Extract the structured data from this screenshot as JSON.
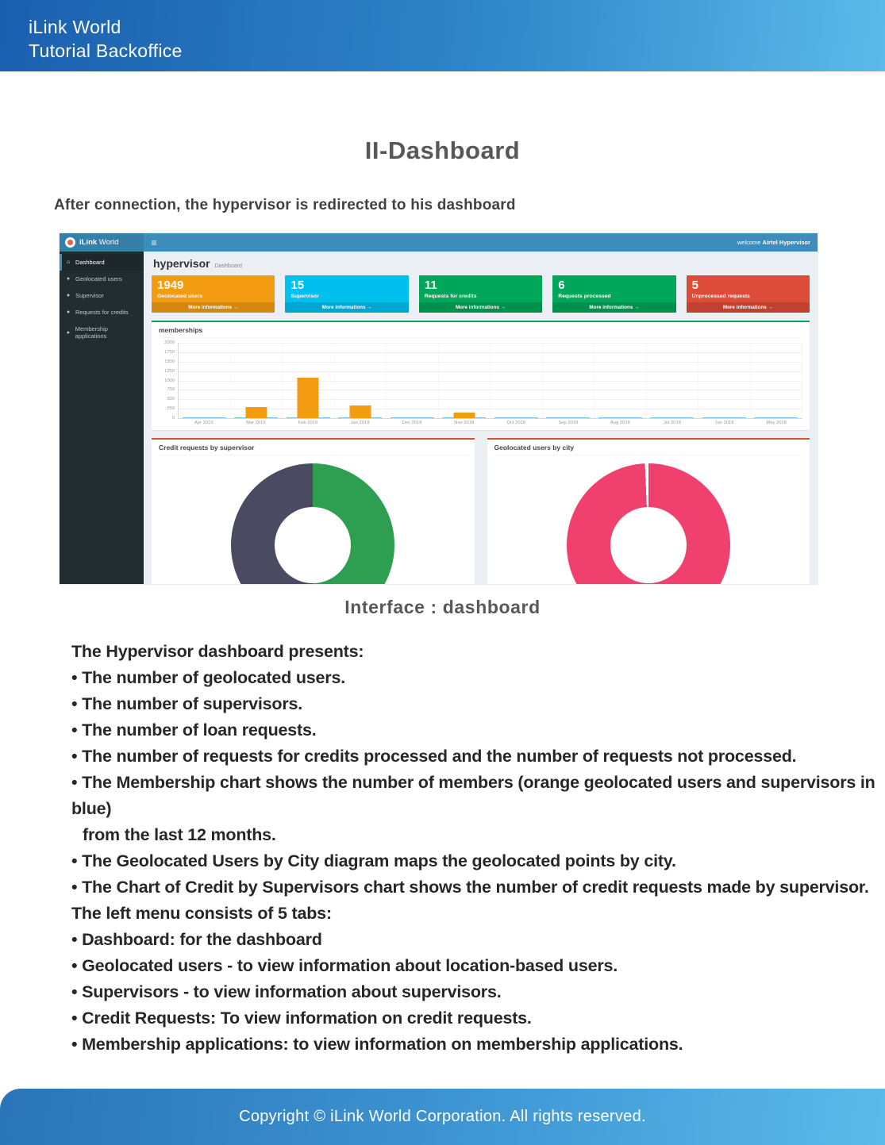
{
  "banner": {
    "line1": "iLink World",
    "line2": "Tutorial Backoffice"
  },
  "title": "II-Dashboard",
  "intro": "After connection, the hypervisor is redirected to his dashboard",
  "icons": {
    "hamburger-icon": "≡",
    "arrow-circle-icon": "→",
    "dashboard-icon": "⌂",
    "users-icon": "●",
    "supervisor-icon": "●",
    "credits-icon": "●",
    "membership-icon": "●"
  },
  "screenshot": {
    "topbar": {
      "brand_bold": "iLink",
      "brand_rest": " World",
      "welcome_prefix": "welcome ",
      "welcome_user": "Airtel Hypervisor"
    },
    "sidebar": {
      "items": [
        {
          "id": "dashboard",
          "label": "Dashboard",
          "icon": "dashboard-icon",
          "active": true
        },
        {
          "id": "geolocated-users",
          "label": "Geolocated users",
          "icon": "users-icon",
          "active": false
        },
        {
          "id": "supervisor",
          "label": "Supervisor",
          "icon": "supervisor-icon",
          "active": false
        },
        {
          "id": "requests-for-credits",
          "label": "Requests for credits",
          "icon": "credits-icon",
          "active": false
        },
        {
          "id": "membership-applications",
          "label": "Membership applications",
          "icon": "membership-icon",
          "active": false
        }
      ]
    },
    "page_header": {
      "title": "hypervisor",
      "subtitle": "Dashboard"
    },
    "stat_cards": [
      {
        "value": "1949",
        "label": "Geolocated users",
        "color": "#f39c12",
        "more": "More informations"
      },
      {
        "value": "15",
        "label": "Supervisor",
        "color": "#00c0ef",
        "more": "More informations"
      },
      {
        "value": "11",
        "label": "Requests for credits",
        "color": "#00a65a",
        "more": "More informations"
      },
      {
        "value": "6",
        "label": "Requests processed",
        "color": "#00a65a",
        "more": "More informations"
      },
      {
        "value": "5",
        "label": "Unprocessed requests",
        "color": "#dd4b39",
        "more": "More informations"
      }
    ]
  },
  "chart_data": [
    {
      "type": "bar",
      "title": "memberships",
      "categories": [
        "Apr 2019",
        "Mar 2019",
        "Feb 2019",
        "Jan 2019",
        "Dec 2018",
        "Nov 2018",
        "Oct 2018",
        "Sep 2018",
        "Aug 2018",
        "Jul 2018",
        "Jun 2018",
        "May 2018"
      ],
      "series": [
        {
          "name": "Geolocated users",
          "color": "#f39c12",
          "values": [
            0,
            300,
            1080,
            330,
            0,
            140,
            0,
            0,
            0,
            0,
            0,
            0
          ]
        },
        {
          "name": "Supervisors",
          "color": "#7cc2e8",
          "values": [
            15,
            15,
            20,
            15,
            15,
            15,
            15,
            15,
            15,
            15,
            15,
            15
          ]
        }
      ],
      "ylim": [
        0,
        2000
      ],
      "yticks": [
        "2000",
        "1750",
        "1500",
        "1250",
        "1000",
        "750",
        "500",
        "250",
        "0"
      ],
      "xlabel": "",
      "ylabel": ""
    },
    {
      "type": "doughnut",
      "title": "Credit requests by supervisor",
      "slices": [
        {
          "color": "#2e9e50",
          "value": 50
        },
        {
          "color": "#4a4a63",
          "value": 50
        }
      ]
    },
    {
      "type": "doughnut",
      "title": "Geolocated users by city",
      "slices": [
        {
          "color": "#f0416e",
          "value": 99.3
        },
        {
          "color": "#ffffff",
          "value": 0.7
        }
      ]
    }
  ],
  "caption": "Interface : dashboard",
  "body_lines": [
    {
      "text": "The Hypervisor dashboard presents:",
      "indent": false
    },
    {
      "text": "• The number of geolocated users.",
      "indent": false
    },
    {
      "text": "• The number of supervisors.",
      "indent": false
    },
    {
      "text": "• The number of loan requests.",
      "indent": false
    },
    {
      "text": "• The number of requests for credits processed and the number of requests not processed.",
      "indent": false
    },
    {
      "text": "• The Membership chart shows the number of members (orange geolocated users and supervisors in blue)",
      "indent": false
    },
    {
      "text": "from the last 12 months.",
      "indent": true
    },
    {
      "text": "• The Geolocated Users by City diagram maps the geolocated points by city.",
      "indent": false
    },
    {
      "text": "• The Chart of Credit by Supervisors chart shows the number of credit requests made by supervisor.",
      "indent": false
    },
    {
      "text": "The left menu consists of 5 tabs:",
      "indent": false
    },
    {
      "text": "• Dashboard: for the dashboard",
      "indent": false
    },
    {
      "text": "• Geolocated users - to view information about location-based users.",
      "indent": false
    },
    {
      "text": "• Supervisors - to view information about supervisors.",
      "indent": false
    },
    {
      "text": "• Credit Requests: To view information on credit requests.",
      "indent": false
    },
    {
      "text": "• Membership applications: to view information on membership applications.",
      "indent": false
    }
  ],
  "footer": {
    "text": "Copyright © iLink World Corporation. All rights reserved."
  }
}
